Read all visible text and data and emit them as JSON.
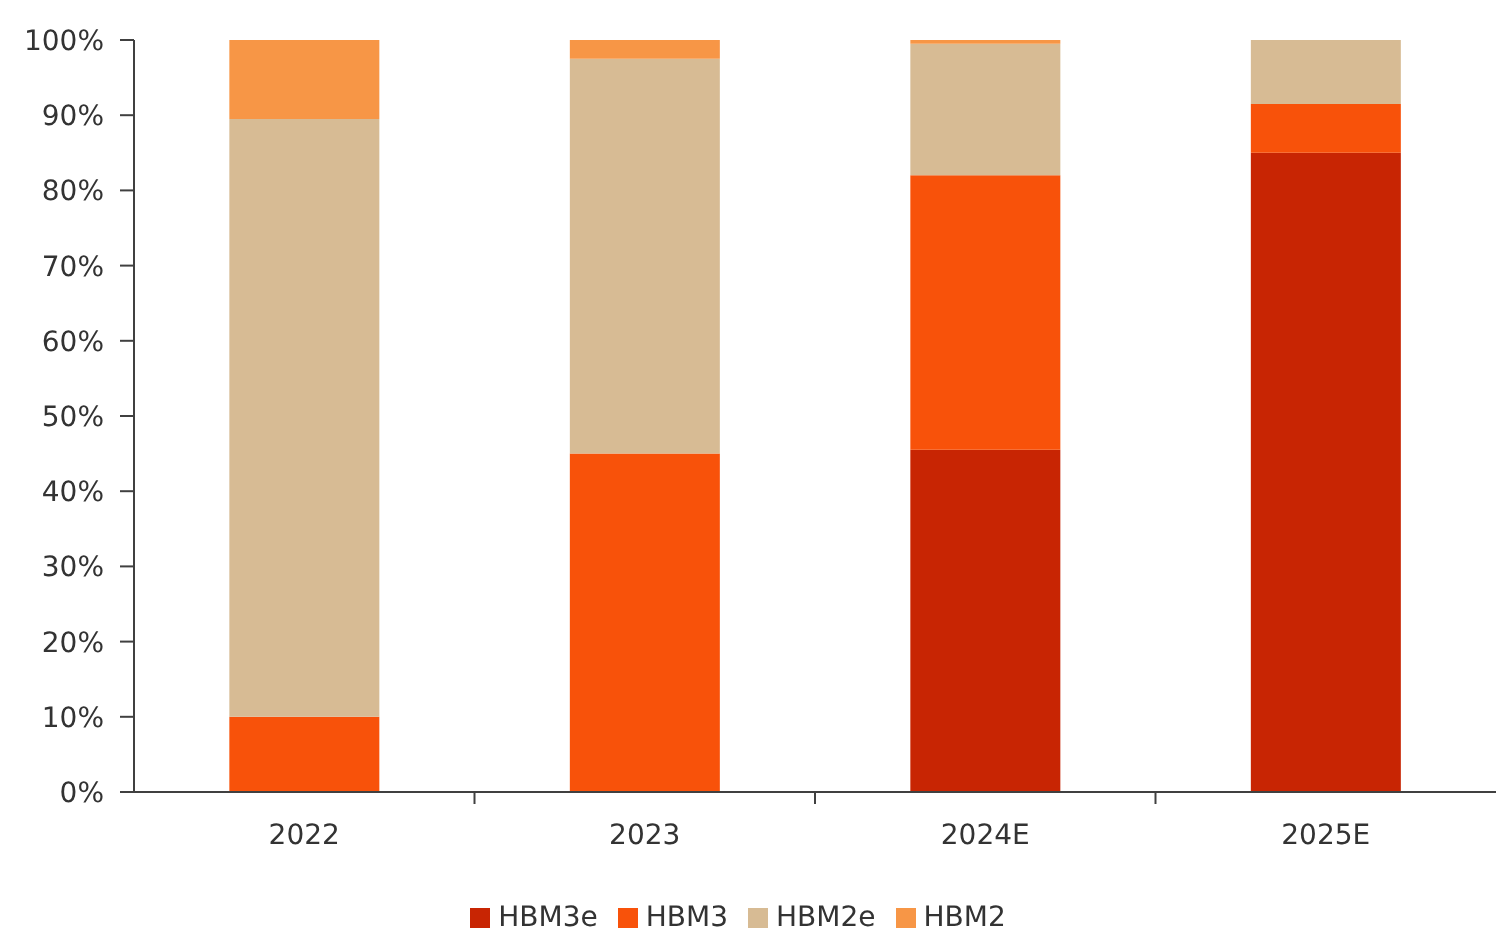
{
  "chart_data": {
    "type": "bar",
    "categories": [
      "2022",
      "2023",
      "2024E",
      "2025E"
    ],
    "stacked": true,
    "series": [
      {
        "name": "HBM3e",
        "color": "#c82503",
        "values": [
          0,
          0,
          45.5,
          85
        ]
      },
      {
        "name": "HBM3",
        "color": "#f8520a",
        "values": [
          10,
          45,
          36.5,
          6.5
        ]
      },
      {
        "name": "HBM2e",
        "color": "#d7bb94",
        "values": [
          79.5,
          52.5,
          17.5,
          8.5
        ]
      },
      {
        "name": "HBM2",
        "color": "#f79646",
        "values": [
          10.5,
          2.5,
          0.5,
          0
        ]
      }
    ],
    "ylim": [
      0,
      100
    ],
    "yticks": [
      {
        "value": 0,
        "label": "0%"
      },
      {
        "value": 10,
        "label": "10%"
      },
      {
        "value": 20,
        "label": "20%"
      },
      {
        "value": 30,
        "label": "30%"
      },
      {
        "value": 40,
        "label": "40%"
      },
      {
        "value": 50,
        "label": "50%"
      },
      {
        "value": 60,
        "label": "60%"
      },
      {
        "value": 70,
        "label": "70%"
      },
      {
        "value": 80,
        "label": "80%"
      },
      {
        "value": 90,
        "label": "90%"
      },
      {
        "value": 100,
        "label": "100%"
      }
    ],
    "legend": "bottom"
  }
}
